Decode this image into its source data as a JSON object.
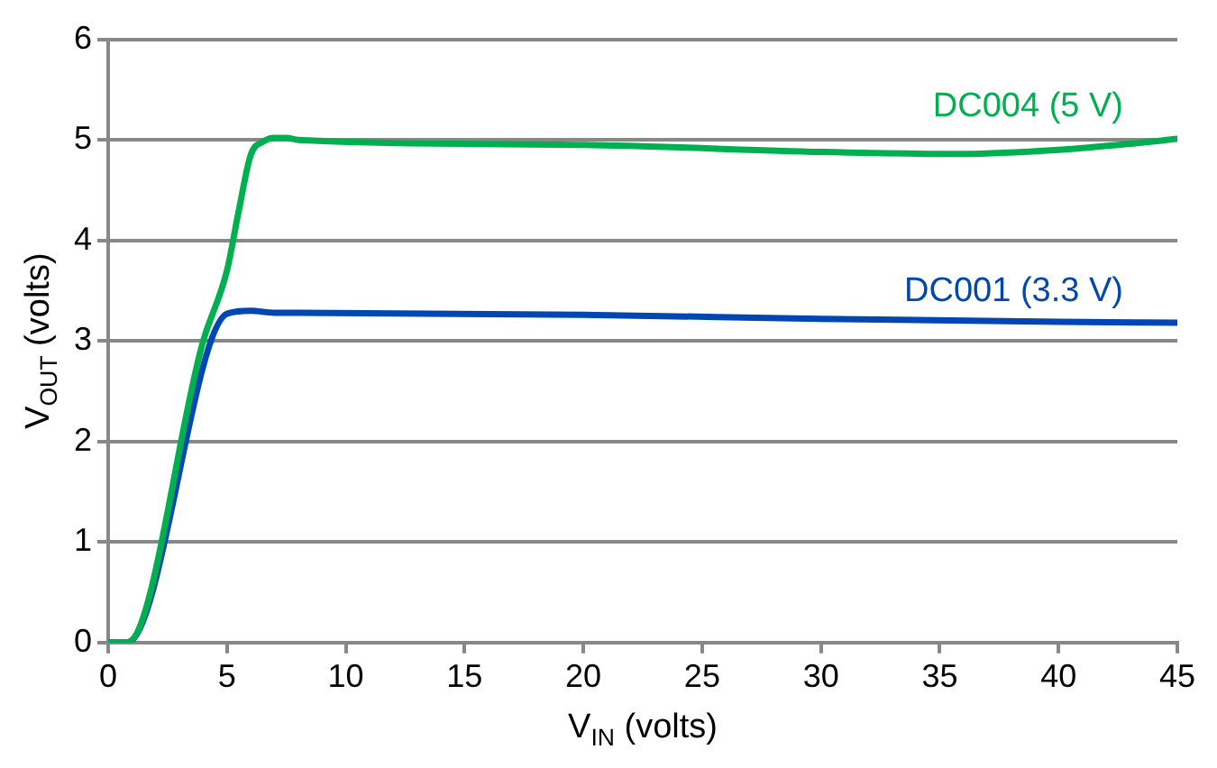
{
  "chart_data": {
    "type": "line",
    "xlabel": "V$_{IN}$ (volts)",
    "ylabel": "V$_{OUT}$ (volts)",
    "xlim": [
      0,
      45
    ],
    "xticks": [
      0,
      5,
      10,
      15,
      20,
      25,
      30,
      35,
      40,
      45
    ],
    "ylim": [
      0,
      6
    ],
    "yticks": [
      0,
      1,
      2,
      3,
      4,
      5,
      6
    ],
    "grid": "y",
    "legend": false,
    "marker": "none",
    "line_style": "solid",
    "series": [
      {
        "name": "DC004 (5 V)",
        "color": "#00b050",
        "x": [
          0,
          0.8,
          4,
          5,
          5.5,
          6,
          6.5,
          7,
          7.5,
          8,
          20,
          30,
          36,
          40,
          43,
          45
        ],
        "values": [
          0,
          0,
          3.0,
          3.7,
          4.3,
          4.85,
          4.98,
          5.02,
          5.02,
          5.0,
          4.95,
          4.88,
          4.86,
          4.9,
          4.96,
          5.01
        ]
      },
      {
        "name": "DC001 (3.3 V)",
        "color": "#0047b3",
        "x": [
          0,
          0.8,
          5,
          6,
          7,
          8,
          20,
          30,
          40,
          45
        ],
        "values": [
          0,
          0,
          3.27,
          3.3,
          3.28,
          3.28,
          3.26,
          3.22,
          3.19,
          3.18
        ]
      }
    ]
  }
}
